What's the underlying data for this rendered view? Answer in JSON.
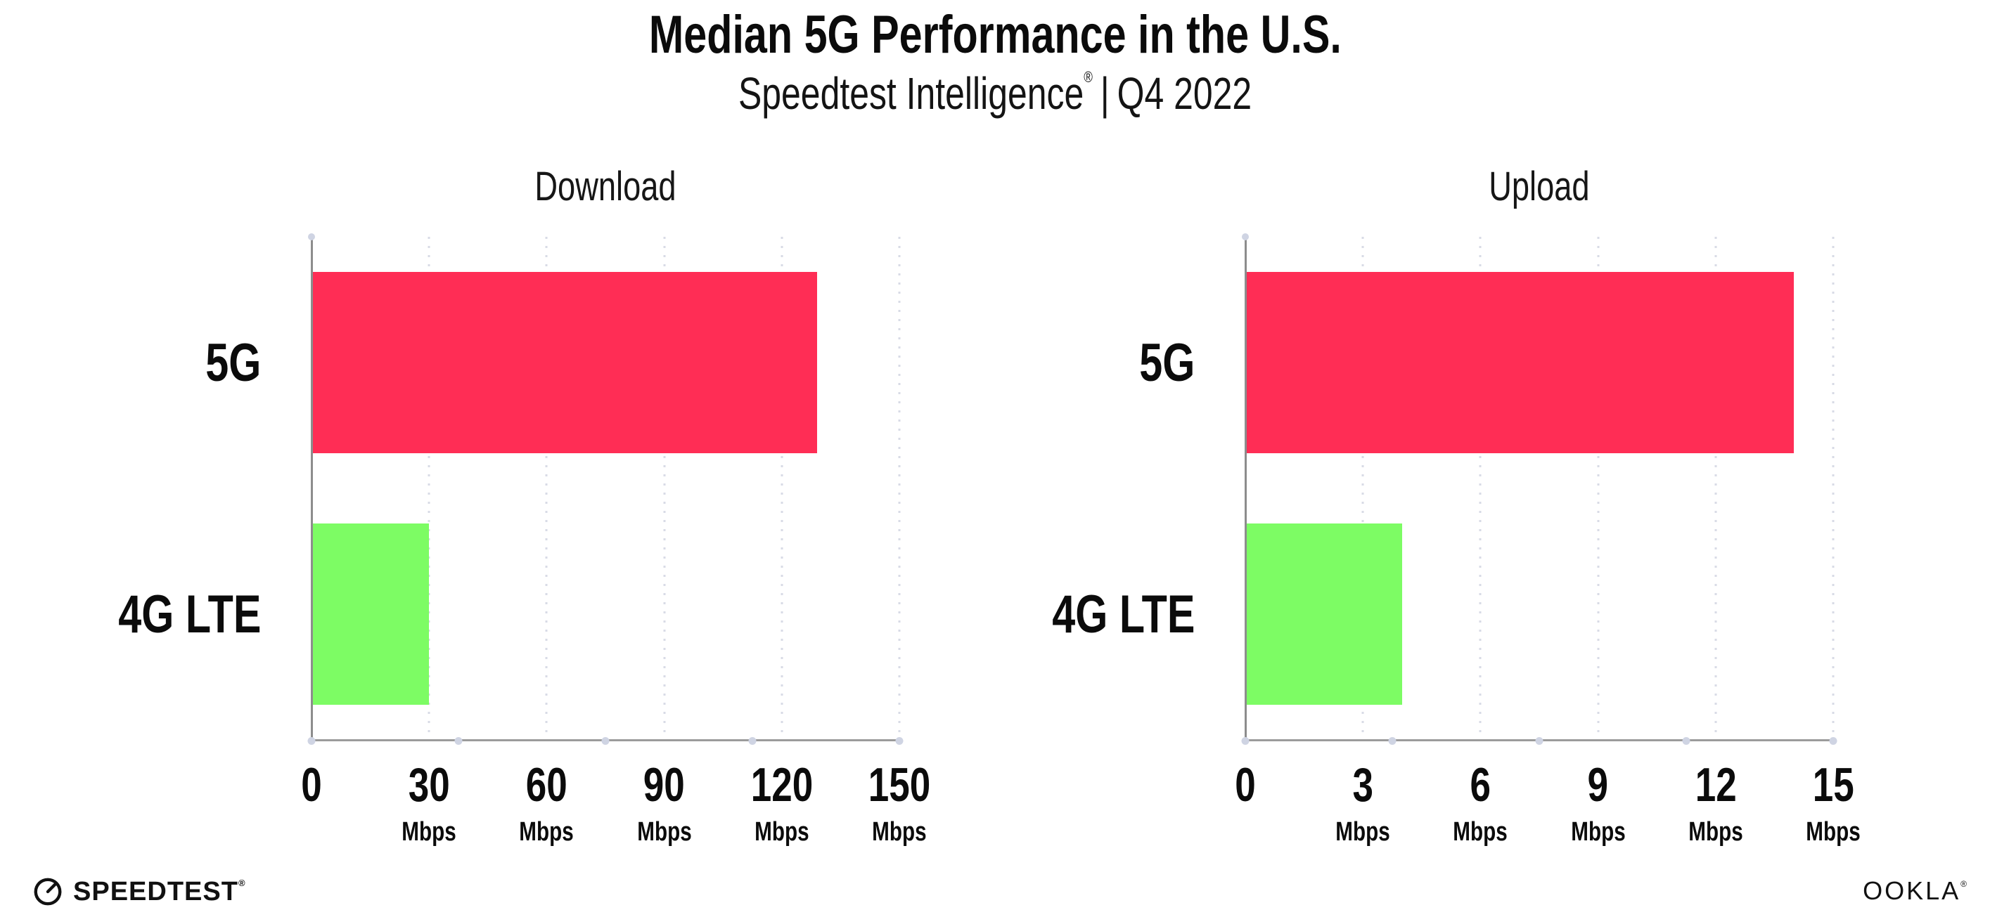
{
  "header": {
    "title": "Median 5G Performance in the U.S.",
    "subtitle_brand": "Speedtest Intelligence",
    "subtitle_reg": "®",
    "subtitle_sep": "|",
    "subtitle_period": "Q4 2022"
  },
  "colors": {
    "bar_5g": "#ff2d55",
    "bar_4g": "#7dfc64",
    "gridline": "#d8dbe6",
    "axis": "#8d8d8d",
    "baseline_dot": "#cfd4e3",
    "text": "#0b0b0b"
  },
  "chart_data": [
    {
      "type": "bar",
      "orientation": "horizontal",
      "title": "Download",
      "categories": [
        "5G",
        "4G LTE"
      ],
      "values": [
        129,
        30
      ],
      "unit": "Mbps",
      "xlim": [
        0,
        150
      ],
      "xticks": [
        0,
        30,
        60,
        90,
        120,
        150
      ],
      "tick_unit": "Mbps",
      "unit_on_zero": false,
      "bar_colors": [
        "#ff2d55",
        "#7dfc64"
      ],
      "grid": "vertical-dotted",
      "legend": "none"
    },
    {
      "type": "bar",
      "orientation": "horizontal",
      "title": "Upload",
      "categories": [
        "5G",
        "4G LTE"
      ],
      "values": [
        14,
        4
      ],
      "unit": "Mbps",
      "xlim": [
        0,
        15
      ],
      "xticks": [
        0,
        3,
        6,
        9,
        12,
        15
      ],
      "tick_unit": "Mbps",
      "unit_on_zero": false,
      "bar_colors": [
        "#ff2d55",
        "#7dfc64"
      ],
      "grid": "vertical-dotted",
      "legend": "none"
    }
  ],
  "footer": {
    "speedtest_wordmark": "SPEEDTEST",
    "speedtest_reg": "®",
    "ookla_wordmark": "OOKLA",
    "ookla_reg": "®"
  }
}
